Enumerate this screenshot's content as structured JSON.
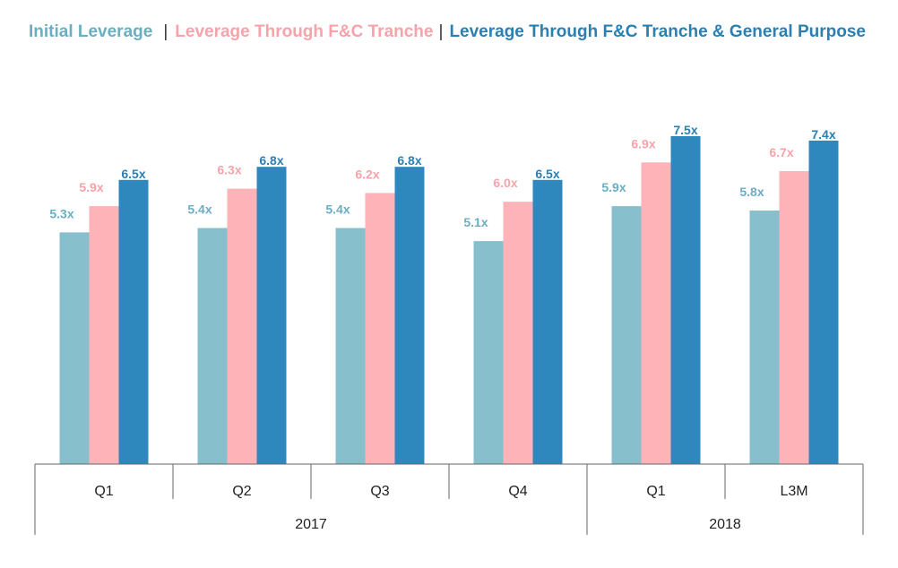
{
  "legend": {
    "series_1": "Initial Leverage",
    "series_2": "Leverage Through F&C Tranche",
    "series_3": "Leverage Through F&C Tranche & General Purpose",
    "separator": "|"
  },
  "colors": {
    "series_1": "#87bfcd",
    "series_2": "#feb3b8",
    "series_3": "#2e88bd",
    "label_1": "#6aaec2",
    "label_2": "#f8a3a9",
    "label_3": "#2a7fb3",
    "axis": "#666666"
  },
  "chart_data": {
    "type": "bar",
    "categories": [
      "Q1",
      "Q2",
      "Q3",
      "Q4",
      "Q1",
      "L3M"
    ],
    "groups": [
      {
        "label": "2017",
        "categories": [
          "Q1",
          "Q2",
          "Q3",
          "Q4"
        ]
      },
      {
        "label": "2018",
        "categories": [
          "Q1",
          "L3M"
        ]
      }
    ],
    "series": [
      {
        "name": "Initial Leverage",
        "values": [
          5.3,
          5.4,
          5.4,
          5.1,
          5.9,
          5.8
        ],
        "labels": [
          "5.3x",
          "5.4x",
          "5.4x",
          "5.1x",
          "5.9x",
          "5.8x"
        ]
      },
      {
        "name": "Leverage Through F&C Tranche",
        "values": [
          5.9,
          6.3,
          6.2,
          6.0,
          6.9,
          6.7
        ],
        "labels": [
          "5.9x",
          "6.3x",
          "6.2x",
          "6.0x",
          "6.9x",
          "6.7x"
        ]
      },
      {
        "name": "Leverage Through F&C Tranche & General Purpose",
        "values": [
          6.5,
          6.8,
          6.8,
          6.5,
          7.5,
          7.4
        ],
        "labels": [
          "6.5x",
          "6.8x",
          "6.8x",
          "6.5x",
          "7.5x",
          "7.4x"
        ]
      }
    ],
    "ylim": [
      0,
      7.5
    ],
    "grid": false,
    "legend_position": "top-right"
  }
}
